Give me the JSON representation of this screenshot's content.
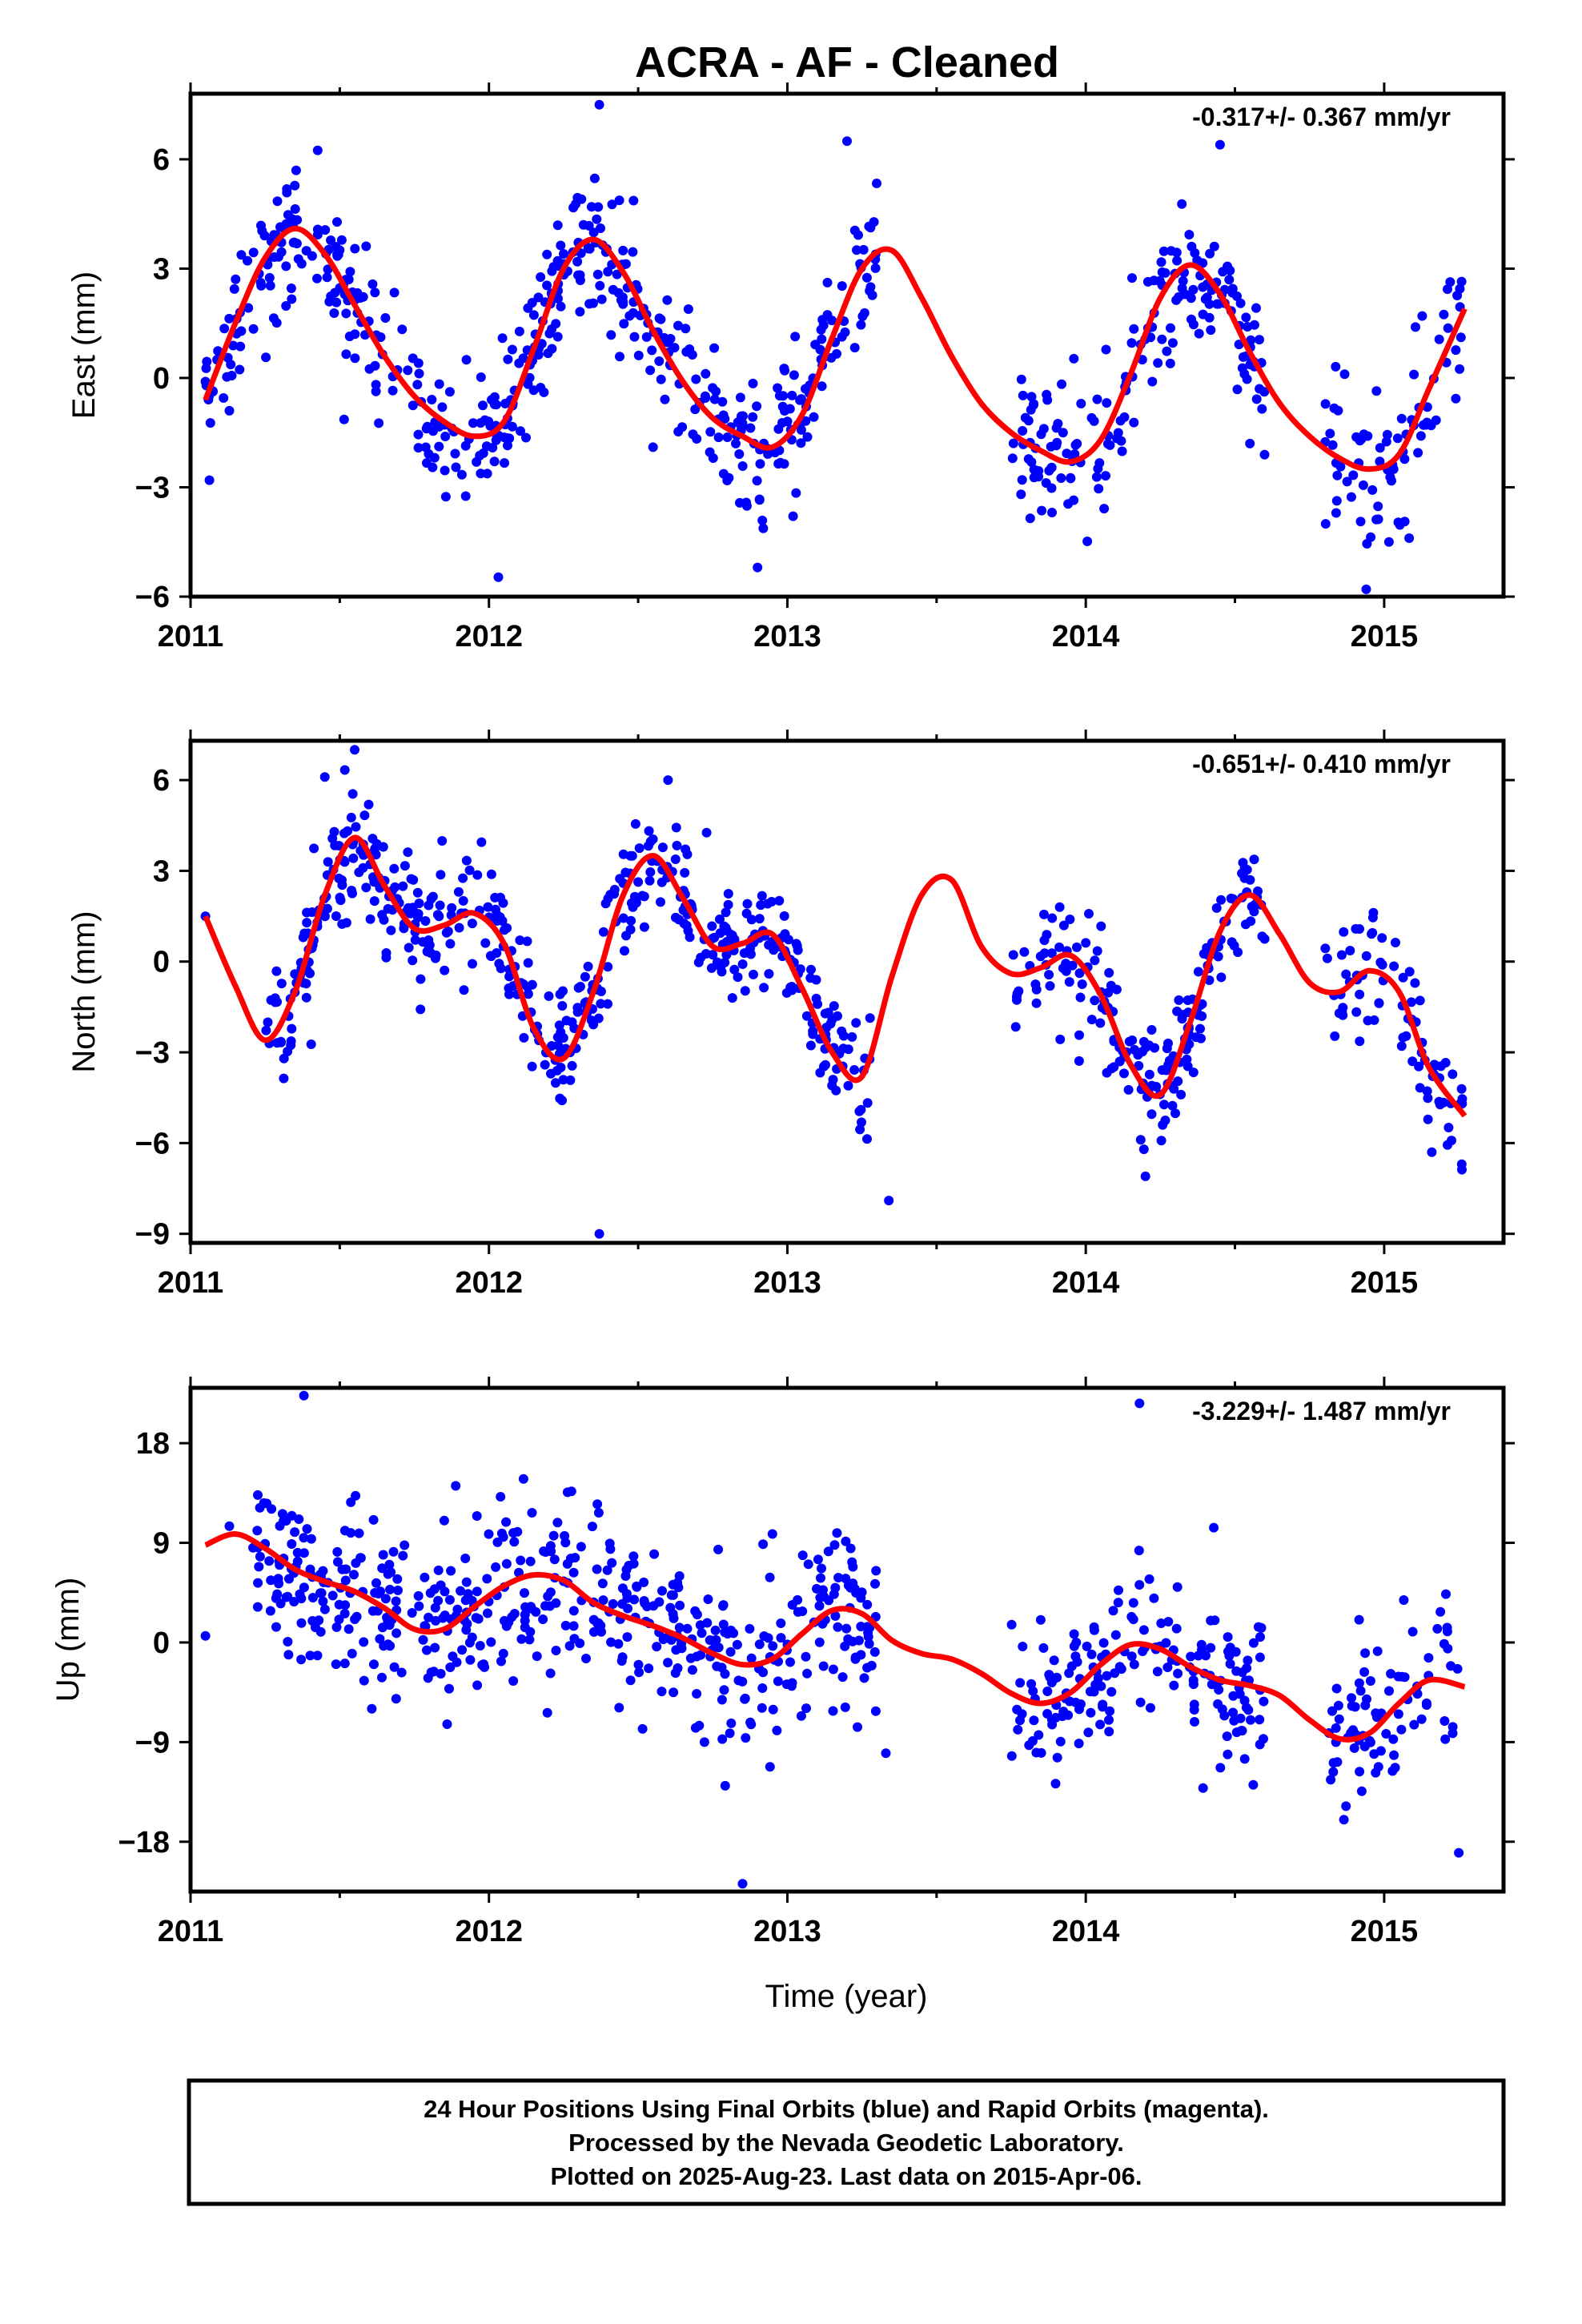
{
  "title": "ACRA  - AF - Cleaned",
  "colors": {
    "final": "#0000ff",
    "model": "#ff0000",
    "rapid": "#ff00ff"
  },
  "footer": {
    "line1": "24 Hour Positions Using Final Orbits (blue) and Rapid Orbits (magenta).",
    "line2": "Processed by the Nevada Geodetic Laboratory.",
    "line3": "Plotted on 2025-Aug-23. Last data on 2015-Apr-06."
  },
  "chart_data": [
    {
      "type": "scatter",
      "component": "east",
      "ylabel": "East (mm)",
      "xlabel": "",
      "rate": "-0.317+/- 0.367 mm/yr",
      "xlim": [
        2011.0,
        2015.4
      ],
      "ylim": [
        -6,
        7.8
      ],
      "xticks": [
        2011,
        2012,
        2013,
        2014,
        2015
      ],
      "yticks": [
        -6,
        -3,
        0,
        3,
        6
      ],
      "ytick_labels": [
        "−6",
        "−3",
        "0",
        "3",
        "6"
      ],
      "model_curve": {
        "x": [
          2011.05,
          2011.15,
          2011.25,
          2011.35,
          2011.45,
          2011.55,
          2011.65,
          2011.75,
          2011.85,
          2011.95,
          2012.05,
          2012.15,
          2012.25,
          2012.35,
          2012.45,
          2012.55,
          2012.65,
          2012.75,
          2012.85,
          2012.95,
          2013.05,
          2013.15,
          2013.25,
          2013.35,
          2013.45,
          2013.55,
          2013.65,
          2013.75,
          2013.85,
          2013.95,
          2014.05,
          2014.15,
          2014.25,
          2014.35,
          2014.45,
          2014.55,
          2014.65,
          2014.75,
          2014.85,
          2014.95,
          2015.05,
          2015.15,
          2015.27
        ],
        "y": [
          -0.6,
          1.5,
          3.3,
          4.1,
          3.4,
          2.0,
          0.6,
          -0.5,
          -1.2,
          -1.6,
          -1.2,
          0.8,
          3.0,
          3.8,
          2.9,
          1.3,
          -0.1,
          -1.1,
          -1.6,
          -1.9,
          -1.0,
          1.1,
          3.0,
          3.5,
          2.2,
          0.6,
          -0.7,
          -1.5,
          -2.0,
          -2.3,
          -1.7,
          0.1,
          2.2,
          3.1,
          2.3,
          0.7,
          -0.7,
          -1.6,
          -2.2,
          -2.5,
          -2.1,
          -0.3,
          1.9
        ]
      },
      "data_segments": [
        {
          "start": 2011.05,
          "end": 2011.7,
          "n": 140,
          "noise": 0.9
        },
        {
          "start": 2011.7,
          "end": 2012.2,
          "n": 110,
          "noise": 1.0
        },
        {
          "start": 2012.2,
          "end": 2012.7,
          "n": 120,
          "noise": 0.9
        },
        {
          "start": 2012.7,
          "end": 2013.3,
          "n": 130,
          "noise": 1.0
        },
        {
          "start": 2013.75,
          "end": 2014.3,
          "n": 110,
          "noise": 1.0
        },
        {
          "start": 2014.3,
          "end": 2014.6,
          "n": 70,
          "noise": 1.0
        },
        {
          "start": 2014.8,
          "end": 2015.27,
          "n": 80,
          "noise": 1.2
        }
      ],
      "outliers": [
        {
          "x": 2011.13,
          "y": -0.9
        },
        {
          "x": 2011.05,
          "y": -0.1
        },
        {
          "x": 2012.37,
          "y": 7.5
        },
        {
          "x": 2013.2,
          "y": 6.5
        },
        {
          "x": 2012.9,
          "y": -5.2
        },
        {
          "x": 2014.45,
          "y": 6.4
        },
        {
          "x": 2014.94,
          "y": -5.8
        },
        {
          "x": 2014.55,
          "y": -1.8
        },
        {
          "x": 2012.55,
          "y": -1.9
        }
      ]
    },
    {
      "type": "scatter",
      "component": "north",
      "ylabel": "North (mm)",
      "xlabel": "",
      "rate": "-0.651+/- 0.410 mm/yr",
      "xlim": [
        2011.0,
        2015.4
      ],
      "ylim": [
        -9.3,
        7.3
      ],
      "xticks": [
        2011,
        2012,
        2013,
        2014,
        2015
      ],
      "yticks": [
        -9,
        -6,
        -3,
        0,
        3,
        6
      ],
      "ytick_labels": [
        "−9",
        "−6",
        "−3",
        "0",
        "3",
        "6"
      ],
      "model_curve": {
        "x": [
          2011.05,
          2011.15,
          2011.25,
          2011.35,
          2011.45,
          2011.55,
          2011.65,
          2011.75,
          2011.85,
          2011.95,
          2012.05,
          2012.15,
          2012.25,
          2012.35,
          2012.45,
          2012.55,
          2012.65,
          2012.75,
          2012.85,
          2012.95,
          2013.05,
          2013.15,
          2013.25,
          2013.35,
          2013.45,
          2013.55,
          2013.65,
          2013.75,
          2013.85,
          2013.95,
          2014.05,
          2014.15,
          2014.25,
          2014.35,
          2014.45,
          2014.55,
          2014.65,
          2014.75,
          2014.85,
          2014.95,
          2015.05,
          2015.15,
          2015.27
        ],
        "y": [
          1.5,
          -0.8,
          -2.6,
          -1.0,
          2.2,
          4.1,
          2.5,
          1.1,
          1.2,
          1.6,
          0.6,
          -2.2,
          -3.2,
          -1.0,
          2.2,
          3.5,
          2.1,
          0.5,
          0.6,
          0.9,
          -0.9,
          -3.0,
          -3.8,
          -0.5,
          2.2,
          2.7,
          0.5,
          -0.4,
          -0.2,
          0.2,
          -1.1,
          -3.4,
          -4.4,
          -2.0,
          1.0,
          2.2,
          0.9,
          -0.7,
          -1.0,
          -0.3,
          -1.0,
          -3.5,
          -5.1
        ]
      },
      "data_segments": [
        {
          "start": 2011.25,
          "end": 2011.7,
          "n": 120,
          "noise": 0.9
        },
        {
          "start": 2011.7,
          "end": 2012.2,
          "n": 110,
          "noise": 0.9
        },
        {
          "start": 2012.2,
          "end": 2012.7,
          "n": 120,
          "noise": 0.9
        },
        {
          "start": 2012.7,
          "end": 2013.3,
          "n": 130,
          "noise": 1.0
        },
        {
          "start": 2013.75,
          "end": 2014.3,
          "n": 110,
          "noise": 1.0
        },
        {
          "start": 2014.3,
          "end": 2014.6,
          "n": 70,
          "noise": 1.0
        },
        {
          "start": 2014.8,
          "end": 2015.27,
          "n": 80,
          "noise": 1.0
        }
      ],
      "outliers": [
        {
          "x": 2011.05,
          "y": 1.5
        },
        {
          "x": 2011.55,
          "y": 7.0
        },
        {
          "x": 2011.45,
          "y": 6.1
        },
        {
          "x": 2012.37,
          "y": -9.0
        },
        {
          "x": 2012.6,
          "y": 6.0
        },
        {
          "x": 2013.34,
          "y": -7.9
        },
        {
          "x": 2014.2,
          "y": -7.1
        },
        {
          "x": 2015.26,
          "y": -6.7
        }
      ]
    },
    {
      "type": "scatter",
      "component": "up",
      "ylabel": "Up (mm)",
      "xlabel": "Time (year)",
      "rate": "-3.229+/- 1.487 mm/yr",
      "xlim": [
        2011.0,
        2015.4
      ],
      "ylim": [
        -22.5,
        23.0
      ],
      "xticks": [
        2011,
        2012,
        2013,
        2014,
        2015
      ],
      "yticks": [
        -18,
        -9,
        0,
        9,
        18
      ],
      "ytick_labels": [
        "−18",
        "−9",
        "0",
        "9",
        "18"
      ],
      "model_curve": {
        "x": [
          2011.05,
          2011.15,
          2011.25,
          2011.35,
          2011.45,
          2011.55,
          2011.65,
          2011.75,
          2011.85,
          2011.95,
          2012.05,
          2012.15,
          2012.25,
          2012.35,
          2012.45,
          2012.55,
          2012.65,
          2012.75,
          2012.85,
          2012.95,
          2013.05,
          2013.15,
          2013.25,
          2013.35,
          2013.45,
          2013.55,
          2013.65,
          2013.75,
          2013.85,
          2013.95,
          2014.05,
          2014.15,
          2014.25,
          2014.35,
          2014.45,
          2014.55,
          2014.65,
          2014.75,
          2014.85,
          2014.95,
          2015.05,
          2015.15,
          2015.27
        ],
        "y": [
          8.8,
          9.8,
          8.5,
          6.6,
          5.5,
          4.6,
          3.1,
          1.2,
          1.2,
          3.2,
          5.1,
          6.1,
          5.6,
          3.6,
          2.4,
          1.5,
          0.4,
          -1.0,
          -2.0,
          -1.5,
          0.8,
          2.9,
          2.6,
          0.2,
          -1.0,
          -1.5,
          -2.8,
          -4.6,
          -5.5,
          -4.5,
          -2.0,
          -0.2,
          -0.6,
          -2.2,
          -3.4,
          -3.9,
          -4.8,
          -7.0,
          -8.7,
          -8.2,
          -5.5,
          -3.4,
          -4.0
        ]
      },
      "data_segments": [
        {
          "start": 2011.2,
          "end": 2011.8,
          "n": 150,
          "noise": 3.5
        },
        {
          "start": 2011.8,
          "end": 2012.25,
          "n": 110,
          "noise": 3.8
        },
        {
          "start": 2012.25,
          "end": 2012.75,
          "n": 120,
          "noise": 3.6
        },
        {
          "start": 2012.75,
          "end": 2013.3,
          "n": 130,
          "noise": 4.0
        },
        {
          "start": 2013.75,
          "end": 2014.3,
          "n": 110,
          "noise": 3.6
        },
        {
          "start": 2014.3,
          "end": 2014.6,
          "n": 70,
          "noise": 3.6
        },
        {
          "start": 2014.8,
          "end": 2015.27,
          "n": 80,
          "noise": 3.8
        }
      ],
      "outliers": [
        {
          "x": 2011.05,
          "y": 0.6
        },
        {
          "x": 2011.13,
          "y": 10.5
        },
        {
          "x": 2011.38,
          "y": 22.3
        },
        {
          "x": 2012.85,
          "y": -21.8
        },
        {
          "x": 2013.33,
          "y": -10.0
        },
        {
          "x": 2014.18,
          "y": 21.6
        },
        {
          "x": 2015.25,
          "y": -19.0
        },
        {
          "x": 2012.95,
          "y": 9.8
        }
      ]
    }
  ]
}
